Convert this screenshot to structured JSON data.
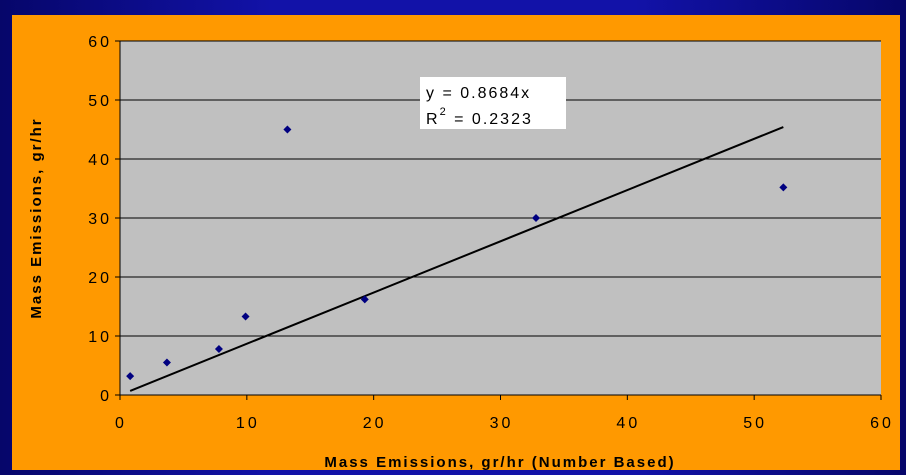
{
  "colors": {
    "frame": "#1212a8",
    "chart_background": "#ff9900",
    "plot_background": "#c0c0c0",
    "marker": "#000080",
    "trendline": "#000000",
    "gridline": "#000000"
  },
  "chart_data": {
    "type": "scatter",
    "xlabel": "Mass Emissions, gr/hr (Number Based)",
    "ylabel": "Mass Emissions, gr/hr",
    "xlim": [
      0,
      60
    ],
    "ylim": [
      0,
      60
    ],
    "xticks": [
      0,
      10,
      20,
      30,
      40,
      50,
      60
    ],
    "yticks": [
      0,
      10,
      20,
      30,
      40,
      50,
      60
    ],
    "grid": "horizontal",
    "points": [
      {
        "x": 0.8,
        "y": 3.2
      },
      {
        "x": 3.7,
        "y": 5.5
      },
      {
        "x": 7.8,
        "y": 7.8
      },
      {
        "x": 9.9,
        "y": 13.3
      },
      {
        "x": 13.2,
        "y": 45.0
      },
      {
        "x": 19.3,
        "y": 16.2
      },
      {
        "x": 32.8,
        "y": 30.0
      },
      {
        "x": 52.3,
        "y": 35.2
      }
    ],
    "trendline": {
      "slope": 0.8684,
      "x_range": [
        0.8,
        52.3
      ],
      "equation": "y = 0.8684x",
      "r2_prefix": "R",
      "r2_exp": "2",
      "r2_value": " = 0.2323"
    }
  }
}
